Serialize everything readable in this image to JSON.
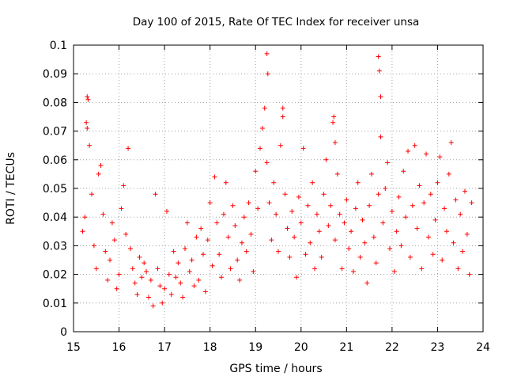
{
  "chart_data": {
    "type": "scatter",
    "title": "Day 100 of 2015, Rate Of TEC Index for receiver unsa",
    "xlabel": "GPS time / hours",
    "ylabel": "ROTI / TECUs",
    "xlim": [
      15,
      24
    ],
    "ylim": [
      0,
      0.1
    ],
    "xticks": [
      "15",
      "16",
      "17",
      "18",
      "19",
      "20",
      "21",
      "22",
      "23",
      "24"
    ],
    "yticks": [
      "0",
      "0.01",
      "0.02",
      "0.03",
      "0.04",
      "0.05",
      "0.06",
      "0.07",
      "0.08",
      "0.09",
      "0.1"
    ],
    "grid": true,
    "marker": "+",
    "color": "#ff0000",
    "series": [
      {
        "name": "ROTI",
        "x": [
          15.2,
          15.25,
          15.28,
          15.3,
          15.35,
          15.4,
          15.45,
          15.5,
          15.55,
          15.6,
          15.65,
          15.7,
          15.75,
          15.8,
          15.85,
          15.9,
          15.95,
          16.0,
          16.05,
          16.1,
          16.15,
          16.2,
          16.25,
          16.3,
          16.35,
          16.4,
          16.45,
          16.5,
          16.55,
          16.6,
          16.65,
          16.7,
          16.75,
          16.8,
          16.85,
          16.9,
          16.95,
          17.0,
          17.05,
          17.1,
          17.15,
          17.2,
          17.25,
          17.3,
          17.35,
          17.4,
          17.45,
          17.5,
          17.55,
          17.6,
          17.65,
          17.7,
          17.75,
          17.8,
          17.85,
          17.9,
          17.95,
          18.0,
          18.05,
          18.1,
          18.15,
          18.2,
          18.25,
          18.3,
          18.35,
          18.4,
          18.45,
          18.5,
          18.55,
          18.6,
          18.65,
          18.7,
          18.75,
          18.8,
          18.85,
          18.9,
          18.95,
          19.0,
          19.05,
          19.1,
          19.15,
          19.2,
          19.25,
          19.3,
          19.35,
          19.4,
          19.45,
          19.5,
          19.55,
          19.6,
          19.65,
          19.7,
          19.75,
          19.8,
          19.85,
          19.9,
          19.95,
          20.0,
          20.05,
          20.1,
          20.15,
          20.2,
          20.25,
          20.3,
          20.35,
          20.4,
          20.45,
          20.5,
          20.55,
          20.6,
          20.65,
          20.7,
          20.75,
          20.8,
          20.85,
          20.9,
          20.95,
          21.0,
          21.05,
          21.1,
          21.15,
          21.2,
          21.25,
          21.3,
          21.35,
          21.4,
          21.45,
          21.5,
          21.55,
          21.6,
          21.65,
          21.7,
          21.75,
          21.8,
          21.85,
          21.9,
          21.95,
          22.0,
          22.05,
          22.1,
          22.15,
          22.2,
          22.25,
          22.3,
          22.35,
          22.4,
          22.45,
          22.5,
          22.55,
          22.6,
          22.65,
          22.7,
          22.75,
          22.8,
          22.85,
          22.9,
          22.95,
          23.0,
          23.05,
          23.1,
          23.15,
          23.2,
          23.25,
          23.3,
          23.35,
          23.4,
          23.45,
          23.5,
          23.55,
          23.6,
          23.65,
          23.7,
          23.75,
          15.3,
          15.32,
          19.25,
          19.27,
          19.6,
          21.7,
          21.72,
          21.75,
          20.72,
          20.75
        ],
        "y": [
          0.035,
          0.04,
          0.073,
          0.082,
          0.065,
          0.048,
          0.03,
          0.022,
          0.055,
          0.058,
          0.041,
          0.028,
          0.018,
          0.025,
          0.038,
          0.032,
          0.015,
          0.02,
          0.043,
          0.051,
          0.034,
          0.064,
          0.029,
          0.022,
          0.017,
          0.013,
          0.026,
          0.019,
          0.024,
          0.021,
          0.012,
          0.018,
          0.009,
          0.048,
          0.022,
          0.016,
          0.01,
          0.015,
          0.042,
          0.02,
          0.013,
          0.028,
          0.019,
          0.024,
          0.017,
          0.012,
          0.029,
          0.038,
          0.021,
          0.025,
          0.016,
          0.033,
          0.018,
          0.036,
          0.027,
          0.014,
          0.032,
          0.045,
          0.023,
          0.054,
          0.038,
          0.027,
          0.019,
          0.041,
          0.052,
          0.033,
          0.022,
          0.044,
          0.037,
          0.025,
          0.018,
          0.031,
          0.04,
          0.028,
          0.045,
          0.034,
          0.021,
          0.056,
          0.043,
          0.064,
          0.071,
          0.078,
          0.059,
          0.045,
          0.032,
          0.052,
          0.041,
          0.028,
          0.065,
          0.075,
          0.048,
          0.036,
          0.026,
          0.042,
          0.033,
          0.019,
          0.047,
          0.038,
          0.064,
          0.027,
          0.044,
          0.031,
          0.052,
          0.022,
          0.041,
          0.035,
          0.026,
          0.048,
          0.06,
          0.037,
          0.044,
          0.073,
          0.032,
          0.055,
          0.041,
          0.022,
          0.038,
          0.046,
          0.029,
          0.035,
          0.021,
          0.043,
          0.052,
          0.026,
          0.039,
          0.031,
          0.017,
          0.044,
          0.055,
          0.033,
          0.024,
          0.048,
          0.068,
          0.038,
          0.05,
          0.059,
          0.029,
          0.042,
          0.021,
          0.035,
          0.047,
          0.03,
          0.056,
          0.04,
          0.063,
          0.026,
          0.044,
          0.065,
          0.036,
          0.051,
          0.022,
          0.045,
          0.062,
          0.033,
          0.048,
          0.027,
          0.039,
          0.052,
          0.061,
          0.025,
          0.043,
          0.035,
          0.055,
          0.066,
          0.031,
          0.046,
          0.022,
          0.041,
          0.028,
          0.049,
          0.034,
          0.02,
          0.045,
          0.071,
          0.081,
          0.097,
          0.09,
          0.078,
          0.096,
          0.091,
          0.082,
          0.075,
          0.066
        ]
      }
    ]
  }
}
